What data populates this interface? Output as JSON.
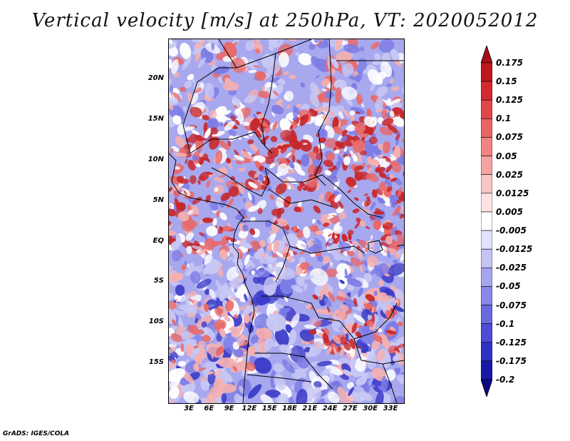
{
  "title": "Vertical velocity [m/s] at 250hPa, VT: 2020052012",
  "credit": "GrADS: IGES/COLA",
  "lat_labels": [
    "20N",
    "15N",
    "10N",
    "5N",
    "EQ",
    "5S",
    "10S",
    "15S"
  ],
  "lon_labels": [
    "3E",
    "6E",
    "9E",
    "12E",
    "15E",
    "18E",
    "21E",
    "24E",
    "27E",
    "30E",
    "33E"
  ],
  "colorbar": {
    "top_value": "0.175",
    "labels": [
      "0.175",
      "0.15",
      "0.125",
      "0.1",
      "0.075",
      "0.05",
      "0.025",
      "0.0125",
      "0.005",
      "-0.005",
      "-0.0125",
      "-0.025",
      "-0.05",
      "-0.075",
      "-0.1",
      "-0.125",
      "-0.175",
      "-0.2"
    ],
    "colors": [
      "#a50f15",
      "#c0161d",
      "#d42a2e",
      "#e0474a",
      "#e86564",
      "#ef8483",
      "#f4a3a2",
      "#f9c5c4",
      "#fde4e4",
      "#ffffff",
      "#e2e2fa",
      "#c4c4f4",
      "#a6a6ef",
      "#8888e8",
      "#6a6ae0",
      "#4c4cd6",
      "#3030c4",
      "#1818a8",
      "#0a0a80"
    ]
  },
  "field_colors": {
    "background": "#a8a8ef",
    "strong_up": "#c8282b",
    "moderate_up": "#e86a6a",
    "weak_up": "#f4b0b0",
    "neutral": "#ffffff",
    "weak_down": "#c8c8f5",
    "moderate_down": "#7c7ce6",
    "strong_down": "#3c3cc8",
    "border": "#000000"
  }
}
